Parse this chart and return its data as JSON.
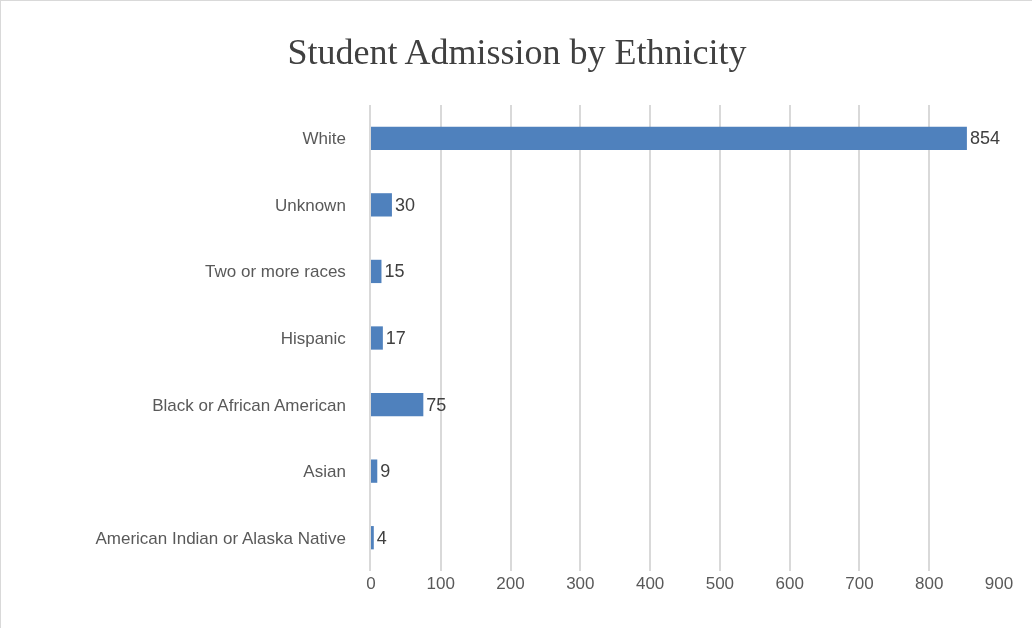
{
  "chart_data": {
    "type": "bar",
    "orientation": "horizontal",
    "title": "Student Admission by Ethnicity",
    "categories": [
      "White",
      "Unknown",
      "Two or more races",
      "Hispanic",
      "Black or African American",
      "Asian",
      "American Indian or Alaska Native"
    ],
    "values": [
      854,
      30,
      15,
      17,
      75,
      9,
      4
    ],
    "color": "#4f81bd",
    "xlim": [
      0,
      900
    ],
    "xticks": [
      0,
      100,
      200,
      300,
      400,
      500,
      600,
      700,
      800,
      900
    ],
    "grid": "x",
    "data_labels": true
  }
}
